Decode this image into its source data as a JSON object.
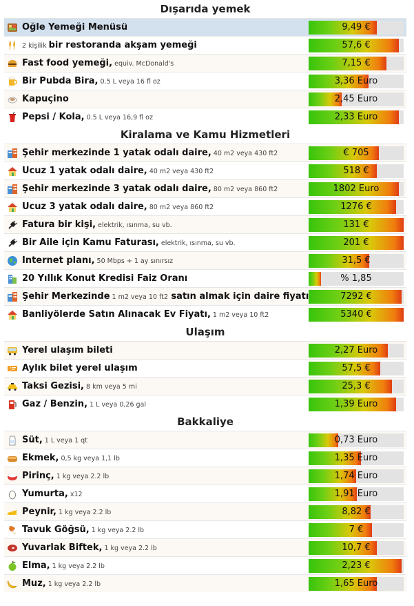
{
  "sections": [
    {
      "title": "Dışarıda yemek",
      "rows": [
        {
          "icon": "lunch-menu-icon",
          "lead": "",
          "main": "Öğle Yemeği Menüsü",
          "main2": "",
          "note": "",
          "value": "9,49 €",
          "fill": 0.72,
          "highlight": true
        },
        {
          "icon": "dinner-couple-icon",
          "lead": "2 kişilik ",
          "main": "bir restoranda akşam yemeği",
          "main2": "",
          "note": "",
          "value": "57,6 €",
          "fill": 0.95
        },
        {
          "icon": "fast-food-icon",
          "lead": "",
          "main": "Fast food yemeği,",
          "main2": "",
          "note": " equiv. McDonald's",
          "value": "7,15 €",
          "fill": 0.82
        },
        {
          "icon": "beer-icon",
          "lead": "",
          "main": "Bir Pubda Bira,",
          "main2": "",
          "note": " 0.5 L veya 16 fl oz",
          "value": "3,36 Euro",
          "fill": 0.63
        },
        {
          "icon": "cappuccino-icon",
          "lead": "",
          "main": "Kapuçino",
          "main2": "",
          "note": "",
          "value": "2,45 Euro",
          "fill": 0.35
        },
        {
          "icon": "cola-icon",
          "lead": "",
          "main": "Pepsi / Kola,",
          "main2": "",
          "note": " 0.5 L veya 16,9 fl oz",
          "value": "2,33 Euro",
          "fill": 0.95
        }
      ]
    },
    {
      "title": "Kiralama ve Kamu Hizmetleri",
      "rows": [
        {
          "icon": "apartment-city-icon",
          "lead": "",
          "main": "Şehir merkezinde 1 yatak odalı daire,",
          "main2": "",
          "note": " 40 m2 veya 430 ft2",
          "value": "€ 705",
          "fill": 0.74
        },
        {
          "icon": "house-icon",
          "lead": "",
          "main": "Ucuz 1 yatak odalı daire,",
          "main2": "",
          "note": " 40 m2 veya 430 ft2",
          "value": "518 €",
          "fill": 0.72
        },
        {
          "icon": "apartment-city-icon",
          "lead": "",
          "main": "Şehir merkezinde 3 yatak odalı daire,",
          "main2": "",
          "note": " 80 m2 veya 860 ft2",
          "value": "1802 Euro",
          "fill": 0.95
        },
        {
          "icon": "house-icon",
          "lead": "",
          "main": "Ucuz 3 yatak odalı daire,",
          "main2": "",
          "note": " 80 m2 veya 860 ft2",
          "value": "1276 €",
          "fill": 0.92
        },
        {
          "icon": "plug-icon",
          "lead": "",
          "main": "Fatura bir kişi,",
          "main2": "",
          "note": " elektrik, ısınma, su vb.",
          "value": "131 €",
          "fill": 1.0
        },
        {
          "icon": "plug-icon",
          "lead": "",
          "main": "Bir Aile için Kamu Faturası,",
          "main2": "",
          "note": " elektrik, ısınma, su vb.",
          "value": "201 €",
          "fill": 1.0
        },
        {
          "icon": "globe-icon",
          "lead": "",
          "main": "İnternet planı,",
          "main2": "",
          "note": " 50 Mbps + 1 ay sınırsız",
          "value": "31,5 €",
          "fill": 0.64
        },
        {
          "icon": "building-icon",
          "lead": "",
          "main": "20 Yıllık Konut Kredisi Faiz Oranı",
          "main2": "",
          "note": "",
          "value": "% 1,85",
          "fill": 0.13
        },
        {
          "icon": "apartment-city-icon",
          "lead": "",
          "main": "Şehir Merkezinde",
          "main2": " satın almak için daire fiyatı",
          "note": " 1 m2 veya 10 ft2",
          "value": "7292 €",
          "fill": 0.98
        },
        {
          "icon": "house-icon",
          "lead": "",
          "main": "Banliyölerde Satın Alınacak Ev Fiyatı,",
          "main2": "",
          "note": " 1 m2 veya 10 ft2",
          "value": "5340 €",
          "fill": 1.0
        }
      ]
    },
    {
      "title": "Ulaşım",
      "rows": [
        {
          "icon": "bus-icon",
          "lead": "",
          "main": "Yerel ulaşım bileti",
          "main2": "",
          "note": "",
          "value": "2,27 Euro",
          "fill": 0.83
        },
        {
          "icon": "ticket-icon",
          "lead": "",
          "main": "Aylık bilet yerel ulaşım",
          "main2": "",
          "note": "",
          "value": "57,5 €",
          "fill": 0.75
        },
        {
          "icon": "taxi-icon",
          "lead": "",
          "main": "Taksi Gezisi,",
          "main2": "",
          "note": " 8 km veya 5 mi",
          "value": "25,3 €",
          "fill": 0.88
        },
        {
          "icon": "gas-icon",
          "lead": "",
          "main": "Gaz / Benzin,",
          "main2": "",
          "note": " 1 L veya 0,26 gal",
          "value": "1,39 Euro",
          "fill": 0.92
        }
      ]
    },
    {
      "title": "Bakkaliye",
      "rows": [
        {
          "icon": "milk-icon",
          "lead": "",
          "main": "Süt,",
          "main2": "",
          "note": " 1 L veya 1 qt",
          "value": "0,73 Euro",
          "fill": 0.31
        },
        {
          "icon": "bread-icon",
          "lead": "",
          "main": "Ekmek,",
          "main2": "",
          "note": " 0,5 kg veya 1,1 lb",
          "value": "1,35 Euro",
          "fill": 0.55
        },
        {
          "icon": "rice-icon",
          "lead": "",
          "main": "Pirinç,",
          "main2": "",
          "note": " 1 kg veya 2.2 lb",
          "value": "1,74 Euro",
          "fill": 0.5
        },
        {
          "icon": "egg-icon",
          "lead": "",
          "main": "Yumurta,",
          "main2": "",
          "note": " x12",
          "value": "1,91 Euro",
          "fill": 0.51
        },
        {
          "icon": "cheese-icon",
          "lead": "",
          "main": "Peynir,",
          "main2": "",
          "note": " 1 kg veya 2.2 lb",
          "value": "8,82 €",
          "fill": 0.65
        },
        {
          "icon": "chicken-icon",
          "lead": "",
          "main": "Tavuk Göğsü,",
          "main2": "",
          "note": " 1 kg veya 2.2 lb",
          "value": "7 €",
          "fill": 0.67
        },
        {
          "icon": "steak-icon",
          "lead": "",
          "main": "Yuvarlak Biftek,",
          "main2": "",
          "note": " 1 kg veya 2.2 lb",
          "value": "10,7 €",
          "fill": 0.72
        },
        {
          "icon": "apple-icon",
          "lead": "",
          "main": "Elma,",
          "main2": "",
          "note": " 1 kg veya 2.2 lb",
          "value": "2,23 €",
          "fill": 0.98
        },
        {
          "icon": "banana-icon",
          "lead": "",
          "main": "Muz,",
          "main2": "",
          "note": " 1 kg veya 2.2 lb",
          "value": "1,65 Euro",
          "fill": 0.72
        }
      ]
    }
  ]
}
